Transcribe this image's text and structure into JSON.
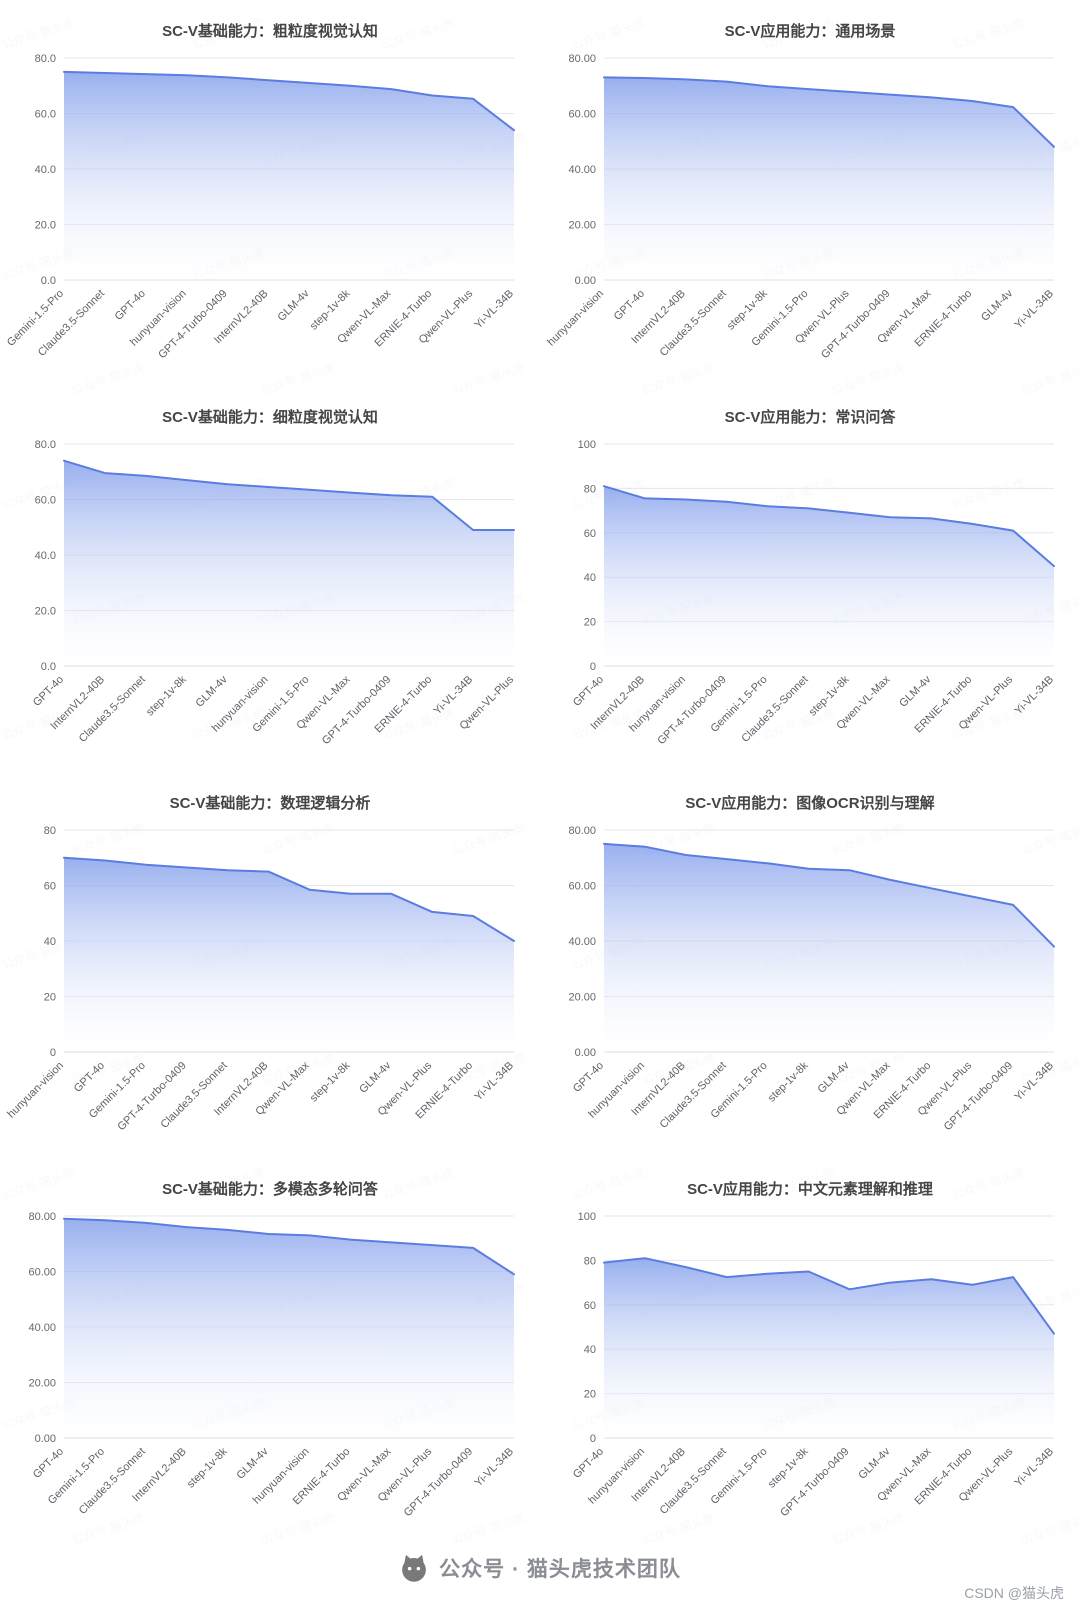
{
  "page": {
    "watermark_tile": "公众号·猫头虎",
    "footer": {
      "brand": "公众号 · 猫头虎技术团队",
      "credit": "CSDN @猫头虎"
    }
  },
  "style": {
    "line_color": "#5b7ce0",
    "area_top_color": "#7f9ceb",
    "area_bottom_color": "#ffffff",
    "grid_color": "#e4e7f0"
  },
  "chart_data": [
    {
      "type": "area",
      "title": "SC-V基础能力：粗粒度视觉认知",
      "categories": [
        "Gemini-1.5-Pro",
        "Claude3.5-Sonnet",
        "GPT-4o",
        "hunyuan-vision",
        "GPT-4-Turbo-0409",
        "InternVL2-40B",
        "GLM-4v",
        "step-1v-8k",
        "Qwen-VL-Max",
        "ERNIE-4-Turbo",
        "Qwen-VL-Plus",
        "Yi-VL-34B"
      ],
      "values": [
        75,
        74.6,
        74.2,
        73.8,
        73,
        72,
        71,
        70,
        68.8,
        66.5,
        65.3,
        54
      ],
      "ylim": [
        0,
        80
      ],
      "ytick_values": [
        0,
        20,
        40,
        60,
        80
      ],
      "ytick_labels": [
        "0.0",
        "20.0",
        "40.0",
        "60.0",
        "80.0"
      ]
    },
    {
      "type": "area",
      "title": "SC-V应用能力：通用场景",
      "categories": [
        "hunyuan-vision",
        "GPT-4o",
        "InternVL2-40B",
        "Claude3.5-Sonnet",
        "step-1v-8k",
        "Gemini-1.5-Pro",
        "Qwen-VL-Plus",
        "GPT-4-Turbo-0409",
        "Qwen-VL-Max",
        "ERNIE-4-Turbo",
        "GLM-4v",
        "Yi-VL-34B"
      ],
      "values": [
        73,
        72.8,
        72.3,
        71.5,
        69.8,
        68.8,
        67.8,
        66.8,
        65.8,
        64.5,
        62.3,
        48
      ],
      "ylim": [
        0,
        80
      ],
      "ytick_values": [
        0,
        20,
        40,
        60,
        80
      ],
      "ytick_labels": [
        "0.00",
        "20.00",
        "40.00",
        "60.00",
        "80.00"
      ]
    },
    {
      "type": "area",
      "title": "SC-V基础能力：细粒度视觉认知",
      "categories": [
        "GPT-4o",
        "InternVL2-40B",
        "Claude3.5-Sonnet",
        "step-1v-8k",
        "GLM-4v",
        "hunyuan-vision",
        "Gemini-1.5-Pro",
        "Qwen-VL-Max",
        "GPT-4-Turbo-0409",
        "ERNIE-4-Turbo",
        "Yi-VL-34B",
        "Qwen-VL-Plus"
      ],
      "values": [
        74,
        69.5,
        68.5,
        67,
        65.5,
        64.5,
        63.5,
        62.5,
        61.5,
        61,
        49,
        49
      ],
      "ylim": [
        0,
        80
      ],
      "ytick_values": [
        0,
        20,
        40,
        60,
        80
      ],
      "ytick_labels": [
        "0.0",
        "20.0",
        "40.0",
        "60.0",
        "80.0"
      ]
    },
    {
      "type": "area",
      "title": "SC-V应用能力：常识问答",
      "categories": [
        "GPT-4o",
        "InternVL2-40B",
        "hunyuan-vision",
        "GPT-4-Turbo-0409",
        "Gemini-1.5-Pro",
        "Claude3.5-Sonnet",
        "step-1v-8k",
        "Qwen-VL-Max",
        "GLM-4v",
        "ERNIE-4-Turbo",
        "Qwen-VL-Plus",
        "Yi-VL-34B"
      ],
      "values": [
        81,
        75.5,
        75,
        74,
        72,
        71,
        69,
        67,
        66.5,
        64,
        61,
        45
      ],
      "ylim": [
        0,
        100
      ],
      "ytick_values": [
        0,
        20,
        40,
        60,
        80,
        100
      ],
      "ytick_labels": [
        "0",
        "20",
        "40",
        "60",
        "80",
        "100"
      ]
    },
    {
      "type": "area",
      "title": "SC-V基础能力：数理逻辑分析",
      "categories": [
        "hunyuan-vision",
        "GPT-4o",
        "Gemini-1.5-Pro",
        "GPT-4-Turbo-0409",
        "Claude3.5-Sonnet",
        "InternVL2-40B",
        "Qwen-VL-Max",
        "step-1v-8k",
        "GLM-4v",
        "Qwen-VL-Plus",
        "ERNIE-4-Turbo",
        "Yi-VL-34B"
      ],
      "values": [
        70,
        69,
        67.5,
        66.5,
        65.5,
        65,
        58.5,
        57,
        57,
        50.5,
        49,
        40
      ],
      "ylim": [
        0,
        80
      ],
      "ytick_values": [
        0,
        20,
        40,
        60,
        80
      ],
      "ytick_labels": [
        "0",
        "20",
        "40",
        "60",
        "80"
      ]
    },
    {
      "type": "area",
      "title": "SC-V应用能力：图像OCR识别与理解",
      "categories": [
        "GPT-4o",
        "hunyuan-vision",
        "InternVL2-40B",
        "Claude3.5-Sonnet",
        "Gemini-1.5-Pro",
        "step-1v-8k",
        "GLM-4v",
        "Qwen-VL-Max",
        "ERNIE-4-Turbo",
        "Qwen-VL-Plus",
        "GPT-4-Turbo-0409",
        "Yi-VL-34B"
      ],
      "values": [
        75,
        74,
        71,
        69.5,
        68,
        66,
        65.5,
        62,
        59,
        56,
        53,
        38
      ],
      "ylim": [
        0,
        80
      ],
      "ytick_values": [
        0,
        20,
        40,
        60,
        80
      ],
      "ytick_labels": [
        "0.00",
        "20.00",
        "40.00",
        "60.00",
        "80.00"
      ]
    },
    {
      "type": "area",
      "title": "SC-V基础能力：多模态多轮问答",
      "categories": [
        "GPT-4o",
        "Gemini-1.5-Pro",
        "Claude3.5-Sonnet",
        "InternVL2-40B",
        "step-1v-8k",
        "GLM-4v",
        "hunyuan-vision",
        "ERNIE-4-Turbo",
        "Qwen-VL-Max",
        "Qwen-VL-Plus",
        "GPT-4-Turbo-0409",
        "Yi-VL-34B"
      ],
      "values": [
        79,
        78.5,
        77.5,
        76,
        75,
        73.5,
        73,
        71.5,
        70.5,
        69.5,
        68.5,
        59
      ],
      "ylim": [
        0,
        80
      ],
      "ytick_values": [
        0,
        20,
        40,
        60,
        80
      ],
      "ytick_labels": [
        "0.00",
        "20.00",
        "40.00",
        "60.00",
        "80.00"
      ]
    },
    {
      "type": "area",
      "title": "SC-V应用能力：中文元素理解和推理",
      "categories": [
        "GPT-4o",
        "hunyuan-vision",
        "InternVL2-40B",
        "Claude3.5-Sonnet",
        "Gemini-1.5-Pro",
        "step-1v-8k",
        "GPT-4-Turbo-0409",
        "GLM-4v",
        "Qwen-VL-Max",
        "ERNIE-4-Turbo",
        "Qwen-VL-Plus",
        "Yi-VL-34B"
      ],
      "values": [
        79,
        81,
        77,
        72.5,
        74,
        75,
        67,
        70,
        71.5,
        69,
        72.5,
        47
      ],
      "ylim": [
        0,
        100
      ],
      "ytick_values": [
        0,
        20,
        40,
        60,
        80,
        100
      ],
      "ytick_labels": [
        "0",
        "20",
        "40",
        "60",
        "80",
        "100"
      ]
    }
  ]
}
